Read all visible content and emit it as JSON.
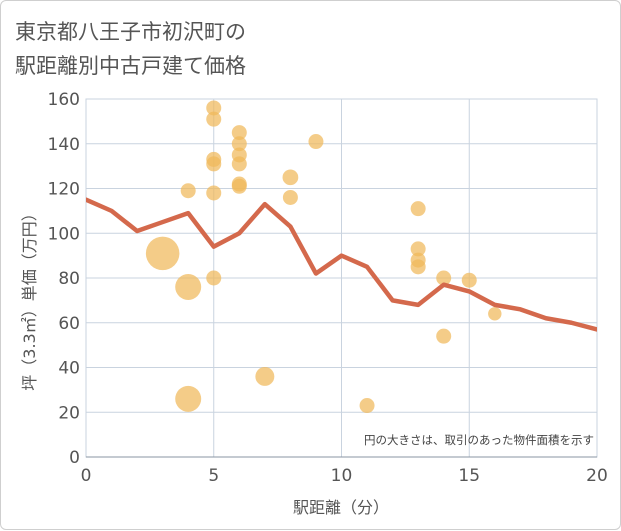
{
  "title_lines": [
    "東京都八王子市初沢町の",
    "駅距離別中古戸建て価格"
  ],
  "chart_data": {
    "type": "scatter",
    "xlabel": "駅距離（分）",
    "ylabel": "坪（3.3㎡）単価（万円）",
    "xlim": [
      0,
      20
    ],
    "ylim": [
      0,
      160
    ],
    "xticks": [
      0,
      5,
      10,
      15,
      20
    ],
    "yticks": [
      0,
      20,
      40,
      60,
      80,
      100,
      120,
      140,
      160
    ],
    "note": "円の大きさは、取引のあった物件面積を示す",
    "colors": {
      "bubble": "#f0b95a",
      "line": "#d4694c",
      "grid": "#c9d3df"
    },
    "scatter": [
      {
        "x": 3,
        "y": 91,
        "size": 5
      },
      {
        "x": 4,
        "y": 76,
        "size": 3
      },
      {
        "x": 4,
        "y": 26,
        "size": 3
      },
      {
        "x": 4,
        "y": 119,
        "size": 1
      },
      {
        "x": 5,
        "y": 156,
        "size": 1
      },
      {
        "x": 5,
        "y": 151,
        "size": 1
      },
      {
        "x": 5,
        "y": 133,
        "size": 1
      },
      {
        "x": 5,
        "y": 131,
        "size": 1
      },
      {
        "x": 5,
        "y": 118,
        "size": 1
      },
      {
        "x": 5,
        "y": 80,
        "size": 1
      },
      {
        "x": 6,
        "y": 145,
        "size": 1
      },
      {
        "x": 6,
        "y": 140,
        "size": 1
      },
      {
        "x": 6,
        "y": 135,
        "size": 1
      },
      {
        "x": 6,
        "y": 131,
        "size": 1
      },
      {
        "x": 6,
        "y": 122,
        "size": 1
      },
      {
        "x": 6,
        "y": 121,
        "size": 1
      },
      {
        "x": 7,
        "y": 36,
        "size": 1.6
      },
      {
        "x": 8,
        "y": 125,
        "size": 1.1
      },
      {
        "x": 8,
        "y": 116,
        "size": 1
      },
      {
        "x": 9,
        "y": 141,
        "size": 1
      },
      {
        "x": 11,
        "y": 23,
        "size": 1
      },
      {
        "x": 13,
        "y": 111,
        "size": 1
      },
      {
        "x": 13,
        "y": 93,
        "size": 1
      },
      {
        "x": 13,
        "y": 88,
        "size": 1
      },
      {
        "x": 13,
        "y": 85,
        "size": 1
      },
      {
        "x": 14,
        "y": 80,
        "size": 1
      },
      {
        "x": 14,
        "y": 54,
        "size": 1
      },
      {
        "x": 15,
        "y": 79,
        "size": 1
      },
      {
        "x": 16,
        "y": 64,
        "size": 0.8
      }
    ],
    "line": {
      "x": [
        0,
        1,
        2,
        3,
        4,
        5,
        6,
        7,
        8,
        9,
        10,
        11,
        12,
        13,
        14,
        15,
        16,
        17,
        18,
        19,
        20
      ],
      "y": [
        115,
        110,
        101,
        105,
        109,
        94,
        100,
        113,
        103,
        82,
        90,
        85,
        70,
        68,
        77,
        74,
        68,
        66,
        62,
        60,
        57
      ]
    }
  }
}
